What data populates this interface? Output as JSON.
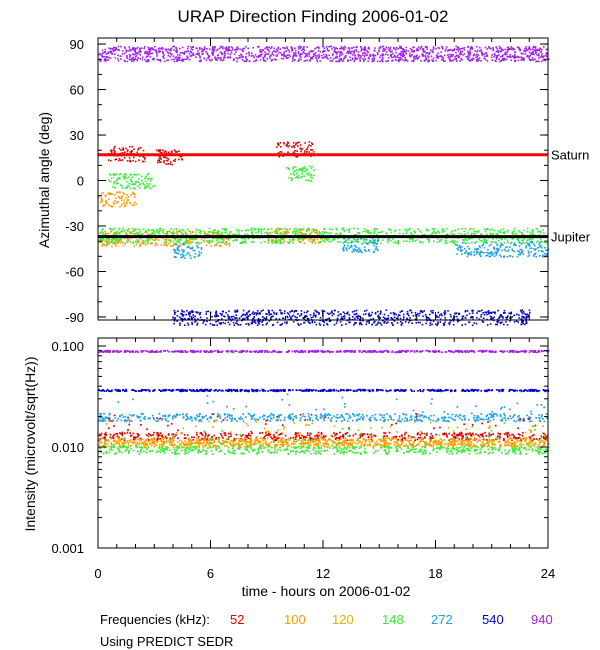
{
  "chart_data": [
    {
      "type": "scatter",
      "panel": "top",
      "title": "URAP Direction Finding  2006-01-02",
      "ylabel": "Azimuthal angle (deg)",
      "ylim": [
        -92,
        94
      ],
      "xlim": [
        0,
        24
      ],
      "y_ticks": [
        90,
        60,
        30,
        0,
        -30,
        -60,
        -90
      ],
      "y_tick_labels": [
        "90",
        "60",
        "30",
        "0",
        "-30",
        "-60",
        "-90"
      ],
      "reference_lines": [
        {
          "label": "Saturn",
          "y": 17,
          "color": "#ff0000"
        },
        {
          "label": "Jupiter",
          "y": -37,
          "color": "#000000"
        }
      ],
      "series": [
        {
          "freq_khz": 940,
          "color": "#a020f0",
          "description_y_center": 84,
          "spread": 5
        },
        {
          "freq_khz": 52,
          "color": "#e00000",
          "clusters": [
            [
              0.5,
              2.5,
              18
            ],
            [
              9.5,
              11.5,
              21
            ],
            [
              3,
              4.5,
              16
            ]
          ]
        },
        {
          "freq_khz": 100,
          "color": "#ff9900",
          "clusters": [
            [
              0,
              2,
              -12
            ],
            [
              0,
              7,
              -38
            ],
            [
              9,
              12,
              -36
            ]
          ]
        },
        {
          "freq_khz": 148,
          "color": "#33ee33",
          "clusters": [
            [
              0,
              24,
              -36
            ],
            [
              0.5,
              3,
              0
            ],
            [
              10,
              11.5,
              5
            ]
          ]
        },
        {
          "freq_khz": 272,
          "color": "#1ea0e6",
          "clusters": [
            [
              4,
              5.5,
              -46
            ],
            [
              13,
              15,
              -42
            ],
            [
              19,
              24,
              -45
            ]
          ]
        },
        {
          "freq_khz": 540,
          "color": "#0000cd",
          "clusters": [
            [
              4,
              23,
              -90
            ]
          ]
        }
      ]
    },
    {
      "type": "scatter",
      "panel": "bottom",
      "ylabel": "Intensity (microvolt/sqrt(Hz))",
      "yscale": "log",
      "ylim": [
        0.001,
        0.12
      ],
      "xlim": [
        0,
        24
      ],
      "y_ticks": [
        0.1,
        0.01,
        0.001
      ],
      "y_tick_labels": [
        "0.100",
        "0.010",
        "0.001"
      ],
      "xlabel": "time - hours on 2006-01-02",
      "x_ticks": [
        0,
        6,
        12,
        18,
        24
      ],
      "x_tick_labels": [
        "0",
        "6",
        "12",
        "18",
        "24"
      ],
      "series": [
        {
          "freq_khz": 940,
          "color": "#a020f0",
          "level": 0.09
        },
        {
          "freq_khz": 540,
          "color": "#0000cd",
          "level": 0.037
        },
        {
          "freq_khz": 272,
          "color": "#1ea0e6",
          "level": 0.02
        },
        {
          "freq_khz": 52,
          "color": "#e00000",
          "level": 0.013
        },
        {
          "freq_khz": 120,
          "color": "#e6b000",
          "level": 0.011
        },
        {
          "freq_khz": 100,
          "color": "#ff9900",
          "level": 0.0115
        },
        {
          "freq_khz": 148,
          "color": "#33ee33",
          "level": 0.0095
        }
      ]
    }
  ],
  "legend": {
    "label": "Frequencies (kHz):",
    "items": [
      {
        "text": "52",
        "color": "#e00000"
      },
      {
        "text": "100",
        "color": "#ff9900"
      },
      {
        "text": "120",
        "color": "#e6b000"
      },
      {
        "text": "148",
        "color": "#33ee33"
      },
      {
        "text": "272",
        "color": "#1ea0e6"
      },
      {
        "text": "540",
        "color": "#0000cd"
      },
      {
        "text": "940",
        "color": "#a020f0"
      }
    ]
  },
  "source_note": "Using PREDICT SEDR"
}
